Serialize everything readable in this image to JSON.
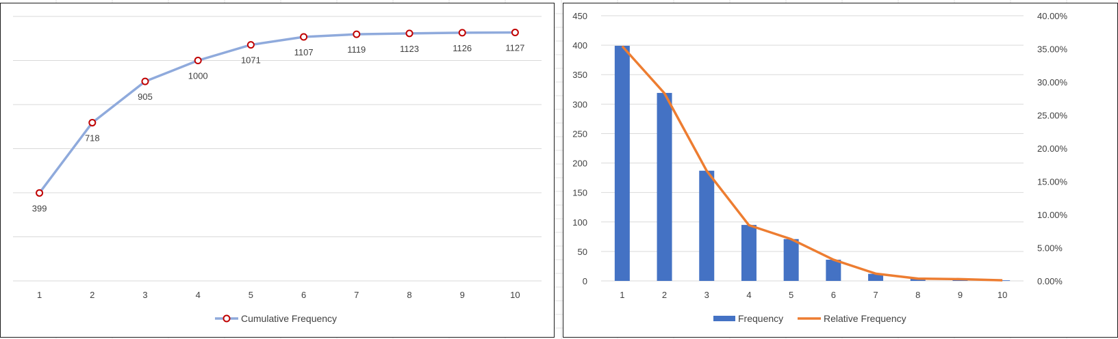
{
  "colors": {
    "cumulative_line": "#8faadc",
    "marker_edge": "#c00000",
    "bar": "#4472c4",
    "relative_line": "#ed7d31",
    "gridline": "#d9d9d9",
    "text": "#404040",
    "sheet_grid": "#e1e1e1"
  },
  "chart_data": [
    {
      "type": "line",
      "x": [
        "1",
        "2",
        "3",
        "4",
        "5",
        "6",
        "7",
        "8",
        "9",
        "10"
      ],
      "series": [
        {
          "name": "Cumulative Frequency",
          "values": [
            399,
            718,
            905,
            1000,
            1071,
            1107,
            1119,
            1123,
            1126,
            1127
          ],
          "data_labels": [
            "399",
            "718",
            "905",
            "1000",
            "1071",
            "1107",
            "1119",
            "1123",
            "1126",
            "1127"
          ],
          "marker": "open-circle"
        }
      ],
      "ylim": [
        0,
        1200
      ],
      "y_axis_visible": false,
      "grid": true,
      "legend": "bottom"
    },
    {
      "type": "bar",
      "categories": [
        "1",
        "2",
        "3",
        "4",
        "5",
        "6",
        "7",
        "8",
        "9",
        "10"
      ],
      "series": [
        {
          "name": "Frequency",
          "type": "bar",
          "axis": "left",
          "values": [
            399,
            319,
            187,
            95,
            71,
            36,
            12,
            4,
            3,
            1
          ]
        },
        {
          "name": "Relative Frequency",
          "type": "line",
          "axis": "right",
          "values": [
            0.354,
            0.283,
            0.166,
            0.084,
            0.063,
            0.032,
            0.011,
            0.0035,
            0.0027,
            0.0009
          ]
        }
      ],
      "ylim": [
        0,
        450
      ],
      "y_ticks": [
        "0",
        "50",
        "100",
        "150",
        "200",
        "250",
        "300",
        "350",
        "400",
        "450"
      ],
      "y2lim": [
        0,
        0.4
      ],
      "y2_ticks": [
        "0.00%",
        "5.00%",
        "10.00%",
        "15.00%",
        "20.00%",
        "25.00%",
        "30.00%",
        "35.00%",
        "40.00%"
      ],
      "grid": true,
      "legend": "bottom"
    }
  ]
}
